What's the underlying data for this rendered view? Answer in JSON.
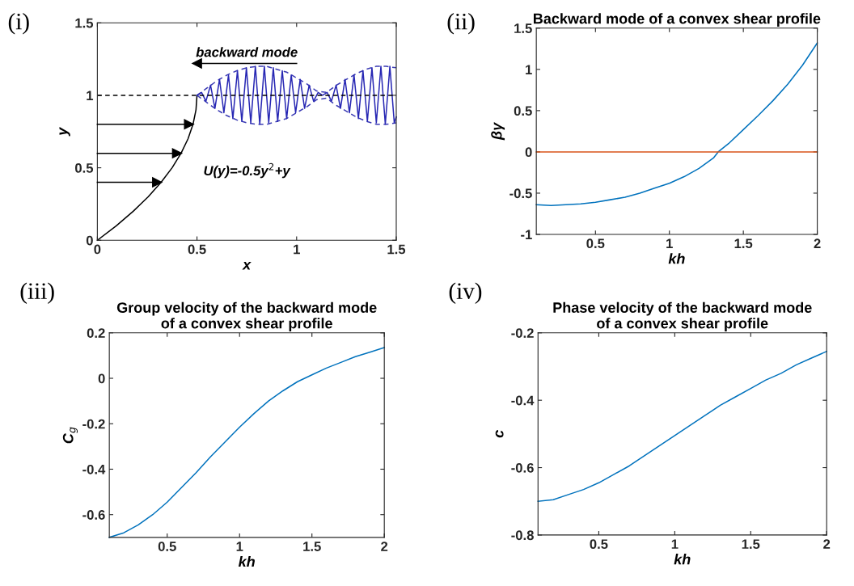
{
  "chart_data": [
    {
      "type": "line",
      "xlabel": "x",
      "ylabel": "y",
      "xlim": [
        0,
        1.5
      ],
      "ylim": [
        0,
        1.5
      ],
      "xticks": [
        0,
        0.5,
        1,
        1.5
      ],
      "yticks": [
        0,
        0.5,
        1,
        1.5
      ],
      "grid": false,
      "series": [
        {
          "color": "#000000",
          "x": [
            0,
            0.095,
            0.18,
            0.255,
            0.32,
            0.375,
            0.42,
            0.455,
            0.48,
            0.495,
            0.5
          ],
          "values": [
            0,
            0.1,
            0.2,
            0.3,
            0.4,
            0.5,
            0.6,
            0.7,
            0.8,
            0.9,
            1.0
          ]
        },
        {
          "color": "#000000",
          "marker": "triangle",
          "x": [
            0,
            0.3
          ],
          "values": [
            0.4,
            0.4
          ]
        },
        {
          "color": "#000000",
          "marker": "triangle",
          "x": [
            0,
            0.4
          ],
          "values": [
            0.6,
            0.6
          ]
        },
        {
          "color": "#000000",
          "marker": "triangle",
          "x": [
            0,
            0.46
          ],
          "values": [
            0.8,
            0.8
          ]
        },
        {
          "color": "#000000",
          "marker": "triangle",
          "x": [
            1.0,
            0.5
          ],
          "values": [
            1.22,
            1.22
          ]
        },
        {
          "color": "#3c3cb4",
          "line_style": "dashed",
          "x": [
            0.5,
            0.55,
            0.6,
            0.65,
            0.7,
            0.75,
            0.8,
            0.85,
            0.9,
            0.95,
            1.0,
            1.05,
            1.1,
            1.15,
            1.2,
            1.25,
            1.3,
            1.35,
            1.4,
            1.45,
            1.5
          ],
          "values": [
            1.0,
            1.05,
            1.1,
            1.14,
            1.17,
            1.19,
            1.2,
            1.2,
            1.18,
            1.16,
            1.12,
            1.08,
            1.03,
            1.02,
            1.07,
            1.11,
            1.15,
            1.18,
            1.2,
            1.2,
            1.19
          ]
        },
        {
          "color": "#3c3cb4",
          "line_style": "dashed",
          "x": [
            0.5,
            0.55,
            0.6,
            0.65,
            0.7,
            0.75,
            0.8,
            0.85,
            0.9,
            0.95,
            1.0,
            1.05,
            1.1,
            1.15,
            1.2,
            1.25,
            1.3,
            1.35,
            1.4,
            1.45,
            1.5
          ],
          "values": [
            1.0,
            0.95,
            0.9,
            0.86,
            0.83,
            0.81,
            0.8,
            0.8,
            0.82,
            0.84,
            0.88,
            0.92,
            0.97,
            0.98,
            0.93,
            0.89,
            0.85,
            0.82,
            0.8,
            0.8,
            0.81
          ]
        },
        {
          "color": "#2828b4",
          "x": [
            0.5,
            0.523,
            0.545,
            0.568,
            0.59,
            0.613,
            0.635,
            0.658,
            0.68,
            0.703,
            0.725,
            0.748,
            0.77,
            0.793,
            0.815,
            0.838,
            0.86,
            0.883,
            0.905,
            0.928,
            0.95,
            0.973,
            0.995,
            1.018,
            1.04,
            1.063,
            1.085,
            1.108,
            1.13,
            1.153,
            1.175,
            1.198,
            1.22,
            1.243,
            1.265,
            1.288,
            1.31,
            1.333,
            1.355,
            1.378,
            1.4,
            1.423,
            1.445,
            1.468,
            1.49,
            1.5
          ],
          "values": [
            1.0,
            1.02,
            0.96,
            1.07,
            0.91,
            1.11,
            0.88,
            1.14,
            0.84,
            1.17,
            0.82,
            1.19,
            0.81,
            1.2,
            0.8,
            1.2,
            0.81,
            1.19,
            0.82,
            1.17,
            0.84,
            1.14,
            0.88,
            1.11,
            0.91,
            1.07,
            0.96,
            1.02,
            1.0,
            1.02,
            0.96,
            1.07,
            0.91,
            1.11,
            0.88,
            1.14,
            0.84,
            1.17,
            0.82,
            1.19,
            0.81,
            1.2,
            0.8,
            1.2,
            0.81,
            0.85
          ]
        }
      ],
      "ref_lines": [
        {
          "axis": "y",
          "value": 1,
          "color": "#000000",
          "line_style": "dashed"
        }
      ],
      "annotations": [
        "(i)",
        "backward mode",
        "U(y)=-0.5y$^{2}$+y"
      ]
    },
    {
      "type": "line",
      "title": "Backward mode of a convex shear profile",
      "xlabel": "kh",
      "ylabel": "βγ",
      "xlim": [
        0.1,
        2
      ],
      "ylim": [
        -1,
        1.5
      ],
      "xticks": [
        0.5,
        1,
        1.5,
        2
      ],
      "yticks": [
        -1,
        -0.5,
        0,
        0.5,
        1,
        1.5
      ],
      "grid": false,
      "series": [
        {
          "color": "#0072bd",
          "x": [
            0.1,
            0.2,
            0.3,
            0.4,
            0.5,
            0.6,
            0.7,
            0.8,
            0.9,
            1.0,
            1.1,
            1.2,
            1.3,
            1.33,
            1.4,
            1.5,
            1.6,
            1.7,
            1.8,
            1.9,
            2.0
          ],
          "values": [
            -0.64,
            -0.65,
            -0.64,
            -0.63,
            -0.61,
            -0.58,
            -0.55,
            -0.5,
            -0.44,
            -0.38,
            -0.3,
            -0.2,
            -0.07,
            0,
            0.1,
            0.27,
            0.44,
            0.62,
            0.82,
            1.05,
            1.32
          ]
        },
        {
          "color": "#d95319",
          "x": [
            0.1,
            2.0
          ],
          "values": [
            0,
            0
          ]
        }
      ],
      "annotations": [
        "(ii)"
      ]
    },
    {
      "type": "line",
      "title": "Group velocity of the backward mode\nof a convex shear profile",
      "xlabel": "kh",
      "ylabel": "C$_{g}$",
      "xlim": [
        0.1,
        2
      ],
      "ylim": [
        -0.7,
        0.2
      ],
      "xticks": [
        0.5,
        1,
        1.5,
        2
      ],
      "yticks": [
        -0.6,
        -0.4,
        -0.2,
        0,
        0.2
      ],
      "grid": false,
      "series": [
        {
          "color": "#0072bd",
          "x": [
            0.1,
            0.2,
            0.3,
            0.4,
            0.5,
            0.6,
            0.7,
            0.8,
            0.9,
            1.0,
            1.1,
            1.2,
            1.3,
            1.4,
            1.5,
            1.6,
            1.7,
            1.8,
            1.9,
            2.0
          ],
          "values": [
            -0.7,
            -0.68,
            -0.645,
            -0.6,
            -0.545,
            -0.48,
            -0.415,
            -0.345,
            -0.28,
            -0.215,
            -0.155,
            -0.1,
            -0.055,
            -0.015,
            0.015,
            0.045,
            0.07,
            0.095,
            0.115,
            0.135
          ]
        }
      ],
      "annotations": [
        "(iii)"
      ]
    },
    {
      "type": "line",
      "title": "Phase velocity of the backward mode\nof a convex shear profile",
      "xlabel": "kh",
      "ylabel": "c",
      "xlim": [
        0.1,
        2
      ],
      "ylim": [
        -0.8,
        -0.2
      ],
      "xticks": [
        0.5,
        1,
        1.5,
        2
      ],
      "yticks": [
        -0.8,
        -0.6,
        -0.4,
        -0.2
      ],
      "grid": false,
      "series": [
        {
          "color": "#0072bd",
          "x": [
            0.1,
            0.2,
            0.3,
            0.4,
            0.5,
            0.6,
            0.7,
            0.8,
            0.9,
            1.0,
            1.1,
            1.2,
            1.3,
            1.4,
            1.5,
            1.6,
            1.7,
            1.8,
            1.9,
            2.0
          ],
          "values": [
            -0.7,
            -0.695,
            -0.68,
            -0.665,
            -0.645,
            -0.62,
            -0.595,
            -0.565,
            -0.535,
            -0.505,
            -0.475,
            -0.445,
            -0.415,
            -0.39,
            -0.365,
            -0.34,
            -0.32,
            -0.295,
            -0.275,
            -0.255
          ]
        }
      ],
      "annotations": [
        "(iv)"
      ]
    }
  ]
}
